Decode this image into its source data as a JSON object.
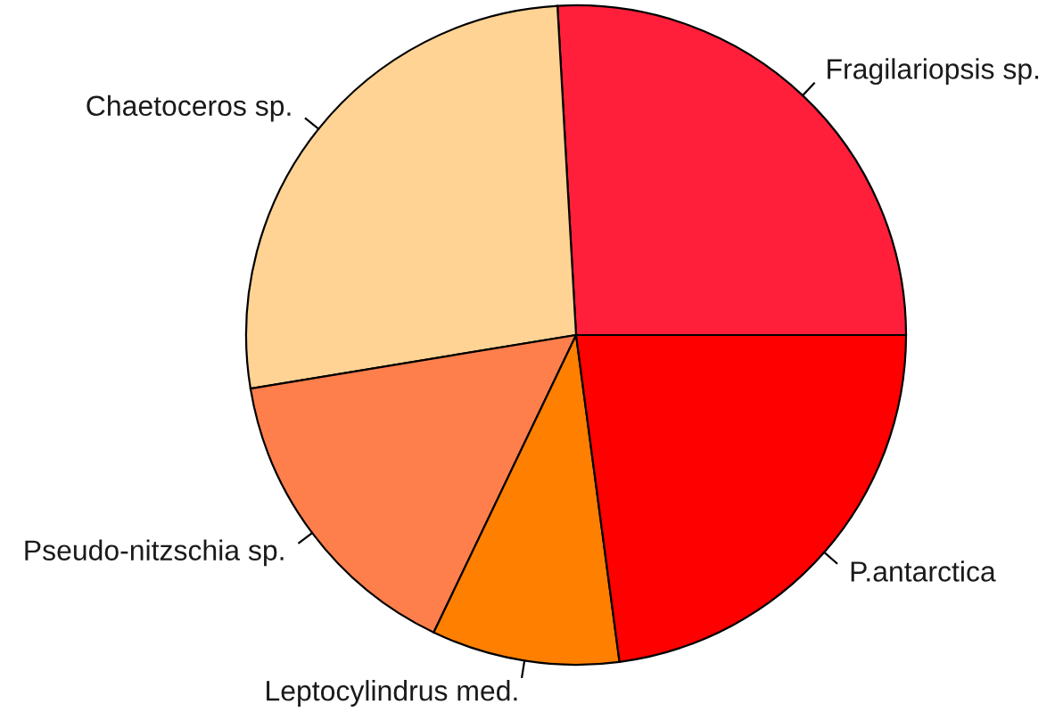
{
  "chart_data": {
    "type": "pie",
    "categories": [
      "Fragilariopsis sp.",
      "Chaetoceros sp.",
      "Pseudo-nitzschia sp.",
      "Leptocylindrus med.",
      "P.antarctica"
    ],
    "values": [
      25.9,
      26.7,
      15.3,
      9.2,
      22.9
    ],
    "colors": [
      "#ff1f3a",
      "#ffd394",
      "#ff7f4c",
      "#ff7f00",
      "#ff0000"
    ]
  }
}
